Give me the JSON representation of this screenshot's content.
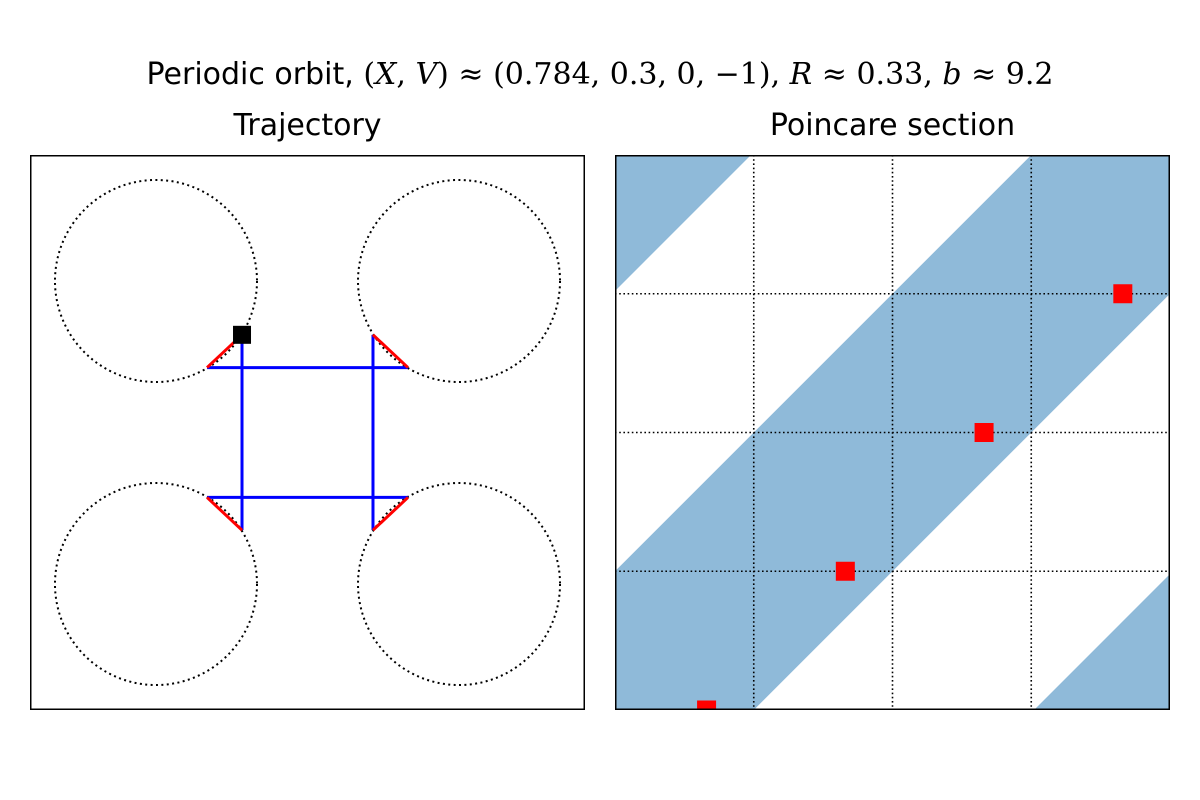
{
  "figure": {
    "title_prefix": "Periodic orbit,",
    "title_parts": [
      "(",
      "X",
      ", ",
      "V",
      ") ≈ (0.784, 0.3, 0, −1), ",
      "R",
      " ≈ 0.33, ",
      "b",
      " ≈ 9.2"
    ]
  },
  "colors": {
    "trajectory": "#0000ff",
    "reflection": "#ff0000",
    "start_marker": "#000000",
    "region_fill": "#8fbad9",
    "section_points": "#ff0000",
    "scatterer_outline": "#000000"
  },
  "chart_data": [
    {
      "type": "line",
      "title": "Trajectory",
      "xlim": [
        0,
        1
      ],
      "ylim": [
        0,
        1
      ],
      "axis_ticks": false,
      "scatterers": [
        {
          "cx": 0.227,
          "cy": 0.773,
          "r": 0.182
        },
        {
          "cx": 0.773,
          "cy": 0.773,
          "r": 0.182
        },
        {
          "cx": 0.227,
          "cy": 0.227,
          "r": 0.182
        },
        {
          "cx": 0.773,
          "cy": 0.227,
          "r": 0.182
        }
      ],
      "series": [
        {
          "role": "trajectory",
          "segments": [
            [
              [
                0.382,
                0.676
              ],
              [
                0.382,
                0.324
              ]
            ],
            [
              [
                0.319,
                0.617
              ],
              [
                0.681,
                0.617
              ]
            ],
            [
              [
                0.618,
                0.676
              ],
              [
                0.618,
                0.324
              ]
            ],
            [
              [
                0.319,
                0.383
              ],
              [
                0.681,
                0.383
              ]
            ]
          ]
        },
        {
          "role": "reflection",
          "segments": [
            [
              [
                0.382,
                0.676
              ],
              [
                0.319,
                0.617
              ]
            ],
            [
              [
                0.618,
                0.676
              ],
              [
                0.681,
                0.617
              ]
            ],
            [
              [
                0.319,
                0.383
              ],
              [
                0.382,
                0.324
              ]
            ],
            [
              [
                0.681,
                0.383
              ],
              [
                0.618,
                0.324
              ]
            ]
          ]
        }
      ],
      "start_point": [
        0.382,
        0.676
      ]
    },
    {
      "type": "scatter",
      "title": "Poincare section",
      "xlim": [
        0,
        4
      ],
      "ylim": [
        0,
        4
      ],
      "grid": true,
      "axis_ticks": false,
      "regions": [
        [
          [
            0,
            4
          ],
          [
            0.98,
            4
          ],
          [
            0,
            3.02
          ]
        ],
        [
          [
            0,
            0
          ],
          [
            0,
            1
          ],
          [
            3,
            4
          ],
          [
            4,
            4
          ],
          [
            4,
            3
          ],
          [
            1,
            0
          ]
        ],
        [
          [
            3.02,
            0
          ],
          [
            4,
            0
          ],
          [
            4,
            0.98
          ]
        ]
      ],
      "points": [
        [
          0.66,
          0
        ],
        [
          1.66,
          1
        ],
        [
          2.66,
          2
        ],
        [
          3.66,
          3
        ]
      ]
    }
  ]
}
